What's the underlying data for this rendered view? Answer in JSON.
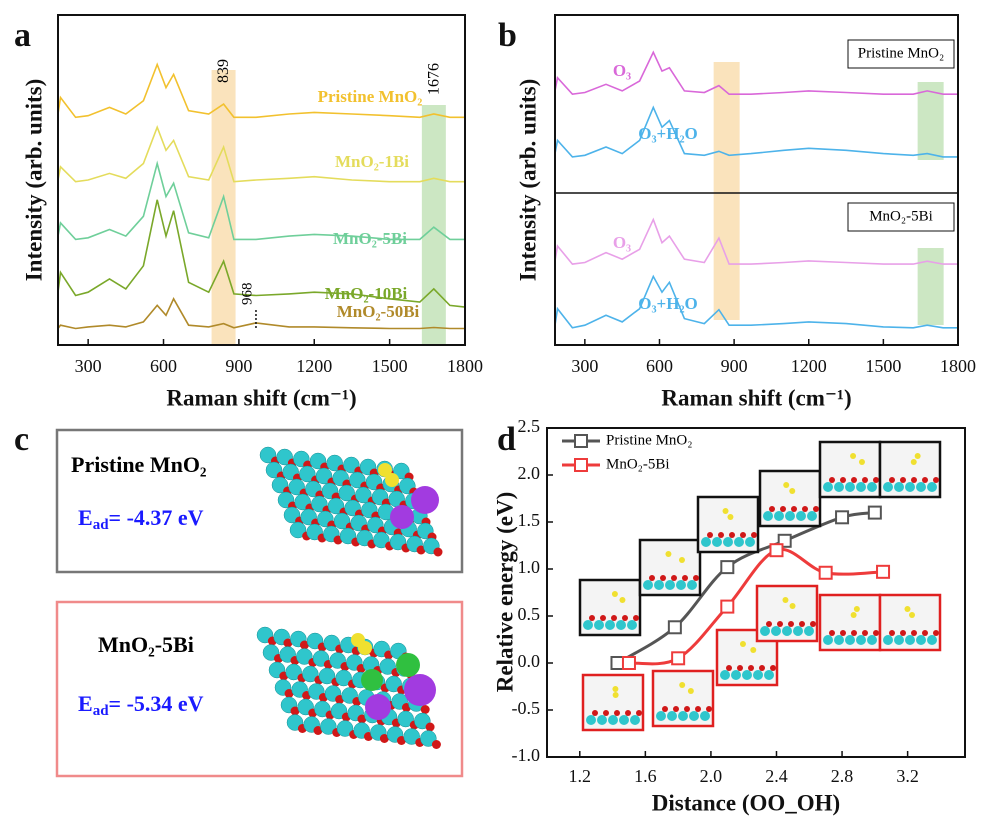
{
  "panel_labels": [
    "a",
    "b",
    "c",
    "d"
  ],
  "chart_data": [
    {
      "type": "spectra",
      "y_label": "Intensity (arb. units)",
      "x_label": "Raman shift (cm⁻¹)",
      "xlim": [
        180,
        1800
      ],
      "xticks": [
        300,
        600,
        900,
        1200,
        1500,
        1800
      ],
      "ylim": [
        0,
        100
      ],
      "x": [
        180,
        190,
        250,
        300,
        385,
        450,
        520,
        575,
        610,
        640,
        700,
        780,
        839,
        880,
        968,
        1100,
        1200,
        1350,
        1500,
        1620,
        1676,
        1740,
        1800
      ],
      "series": [
        {
          "name": "Pristine MnO₂",
          "color": "#f2c12e",
          "values": [
            70,
            75,
            69,
            69.5,
            72,
            70,
            74,
            85,
            78,
            82,
            71,
            70,
            73,
            69,
            69,
            70,
            70.5,
            70,
            69.5,
            69,
            70,
            69,
            69
          ]
        },
        {
          "name": "MnO₂-1Bi",
          "color": "#e4dc5c",
          "values": [
            50,
            54,
            49.5,
            50,
            52,
            50.5,
            55,
            66,
            59,
            62,
            51,
            50,
            60,
            49.5,
            50,
            50.5,
            51,
            50,
            49.5,
            49.5,
            50.5,
            49.5,
            49.5
          ]
        },
        {
          "name": "MnO₂-5Bi",
          "color": "#6fcf9a",
          "values": [
            33,
            37,
            32,
            32.5,
            35,
            33,
            39,
            55,
            45,
            49,
            34,
            32.5,
            45,
            32,
            32,
            33,
            33.5,
            33,
            32,
            32,
            35.7,
            32,
            32
          ]
        },
        {
          "name": "MnO₂-10Bi",
          "color": "#7aa82a",
          "values": [
            16,
            22,
            15,
            16,
            20,
            17,
            24,
            44,
            33,
            40.7,
            19,
            16,
            25.4,
            15.5,
            15,
            15.5,
            16,
            15.5,
            14,
            13,
            17,
            12,
            11.5
          ]
        },
        {
          "name": "MnO₂-50Bi",
          "color": "#b08a2a",
          "values": [
            5,
            6,
            5,
            5.5,
            6,
            5.5,
            7,
            12,
            9,
            14,
            6,
            5.5,
            6.5,
            5.2,
            6.7,
            5.5,
            5.5,
            5.2,
            5,
            5,
            5.3,
            5,
            5
          ]
        }
      ],
      "highlights": [
        {
          "value": 839,
          "color": "#f5c26b"
        },
        {
          "value": 1676,
          "color": "#8fc97a"
        }
      ],
      "annotations": [
        968
      ]
    },
    {
      "type": "spectra-split",
      "y_label": "Intensity (arb. units)",
      "x_label": "Raman shift (cm⁻¹)",
      "xlim": [
        180,
        1800
      ],
      "xticks": [
        300,
        600,
        900,
        1200,
        1500,
        1800
      ],
      "ylim": [
        0,
        100
      ],
      "x": [
        180,
        190,
        250,
        300,
        385,
        450,
        520,
        575,
        610,
        640,
        700,
        780,
        839,
        880,
        968,
        1100,
        1200,
        1350,
        1500,
        1620,
        1676,
        1740,
        1800
      ],
      "highlights": [
        {
          "value": 870,
          "color": "#f5c26b"
        },
        {
          "value": 1690,
          "color": "#8fc97a"
        }
      ],
      "subplots": [
        {
          "title": "Pristine MnO₂",
          "series": [
            {
              "name": "O₃",
              "color": "#d968d9",
              "values": [
                77,
                81,
                76,
                76.5,
                79,
                77,
                80,
                88.7,
                83,
                84,
                77,
                76.5,
                78.6,
                76,
                76,
                76.5,
                77,
                76.5,
                76,
                76,
                77,
                76,
                76
              ]
            },
            {
              "name": "O₃+H₂O",
              "color": "#4db3ea",
              "values": [
                58,
                62,
                57,
                57.5,
                60,
                58,
                62,
                72,
                66,
                68,
                58,
                57.5,
                58.7,
                57.5,
                58,
                59,
                59.6,
                59,
                58,
                57.5,
                58,
                57,
                57
              ]
            }
          ]
        },
        {
          "title": "MnO₂-5Bi",
          "series": [
            {
              "name": "O₃",
              "color": "#e8a0e8",
              "values": [
                25.5,
                30,
                24.5,
                25,
                28,
                26,
                29,
                38,
                31,
                33,
                26,
                25,
                32.4,
                24.5,
                24.5,
                25,
                25.5,
                25,
                24.5,
                24.5,
                25.4,
                24.5,
                24.5
              ]
            },
            {
              "name": "O₃+H₂O",
              "color": "#4db3ea",
              "values": [
                6,
                11,
                5.2,
                6,
                9,
                7,
                11,
                20.8,
                16,
                19,
                8,
                6.5,
                10.7,
                6,
                6,
                6.5,
                7,
                6.5,
                5.5,
                5.2,
                6,
                5.2,
                5.2
              ]
            }
          ]
        }
      ]
    },
    {
      "type": "line",
      "x_label": "Distance (OO_OH)",
      "y_label": "Relative energy (eV)",
      "xlim": [
        1.0,
        3.55
      ],
      "xticks": [
        1.2,
        1.6,
        {
          "value": 2.0,
          "label": "2.0"
        },
        2.4,
        2.8,
        3.2
      ],
      "ylim": [
        -1.0,
        2.5
      ],
      "yticks": [
        {
          "value": -1,
          "label": "-1.0"
        },
        -0.5,
        {
          "value": 0,
          "label": "0.0"
        },
        0.5,
        {
          "value": 1,
          "label": "1.0"
        },
        1.5,
        {
          "value": 2,
          "label": "2.0"
        },
        2.5
      ],
      "series": [
        {
          "name": "Pristine MnO₂",
          "color": "#555555",
          "x": [
            1.43,
            1.78,
            2.1,
            2.45,
            2.8,
            3.0
          ],
          "values": [
            0,
            0.38,
            1.02,
            1.3,
            1.55,
            1.6
          ]
        },
        {
          "name": "MnO₂-5Bi",
          "color": "#ee3b3b",
          "x": [
            1.5,
            1.8,
            2.1,
            2.4,
            2.7,
            3.05
          ],
          "values": [
            0,
            0.05,
            0.6,
            1.2,
            0.96,
            0.97
          ]
        }
      ]
    }
  ],
  "adsorption": {
    "boxes": [
      {
        "title": "Pristine MnO₂",
        "energy": {
          "symbol": "E",
          "subscript": "ad",
          "text": "= -4.37 eV"
        }
      },
      {
        "title": "MnO₂-5Bi",
        "energy": {
          "symbol": "E",
          "subscript": "ad",
          "text": "= -5.34 eV"
        }
      }
    ]
  }
}
